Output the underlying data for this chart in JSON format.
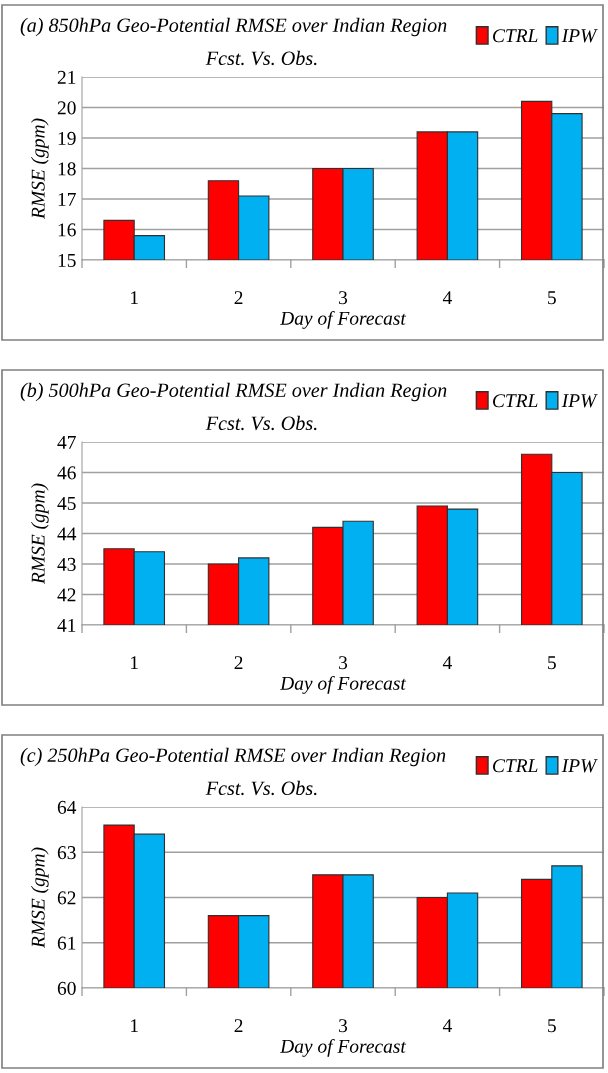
{
  "chart_data": [
    {
      "type": "bar",
      "title": "(a) 850hPa Geo-Potential RMSE over Indian Region",
      "subtitle": "Fcst. Vs. Obs.",
      "xlabel": "Day of Forecast",
      "ylabel": "RMSE (gpm)",
      "categories": [
        "1",
        "2",
        "3",
        "4",
        "5"
      ],
      "series": [
        {
          "name": "CTRL",
          "color": "#ff0000",
          "values": [
            16.3,
            17.6,
            18.0,
            19.2,
            20.2
          ]
        },
        {
          "name": "IPW",
          "color": "#00b0f0",
          "values": [
            15.8,
            17.1,
            18.0,
            19.2,
            19.8
          ]
        }
      ],
      "ylim": [
        15,
        21
      ],
      "yticks": [
        15,
        16,
        17,
        18,
        19,
        20,
        21
      ],
      "grid": "y",
      "legend": "top right"
    },
    {
      "type": "bar",
      "title": "(b) 500hPa Geo-Potential RMSE over Indian Region",
      "subtitle": "Fcst. Vs. Obs.",
      "xlabel": "Day of Forecast",
      "ylabel": "RMSE (gpm)",
      "categories": [
        "1",
        "2",
        "3",
        "4",
        "5"
      ],
      "series": [
        {
          "name": "CTRL",
          "color": "#ff0000",
          "values": [
            43.5,
            43.0,
            44.2,
            44.9,
            46.6
          ]
        },
        {
          "name": "IPW",
          "color": "#00b0f0",
          "values": [
            43.4,
            43.2,
            44.4,
            44.8,
            46.0
          ]
        }
      ],
      "ylim": [
        41,
        47
      ],
      "yticks": [
        41,
        42,
        43,
        44,
        45,
        46,
        47
      ],
      "grid": "y",
      "legend": "top right"
    },
    {
      "type": "bar",
      "title": "(c) 250hPa Geo-Potential RMSE over Indian Region",
      "subtitle": "Fcst. Vs. Obs.",
      "xlabel": "Day of Forecast",
      "ylabel": "RMSE (gpm)",
      "categories": [
        "1",
        "2",
        "3",
        "4",
        "5"
      ],
      "series": [
        {
          "name": "CTRL",
          "color": "#ff0000",
          "values": [
            63.6,
            61.6,
            62.5,
            62.0,
            62.4
          ]
        },
        {
          "name": "IPW",
          "color": "#00b0f0",
          "values": [
            63.4,
            61.6,
            62.5,
            62.1,
            62.7
          ]
        }
      ],
      "ylim": [
        60,
        64
      ],
      "yticks": [
        60,
        61,
        62,
        63,
        64
      ],
      "grid": "y",
      "legend": "top right"
    }
  ]
}
